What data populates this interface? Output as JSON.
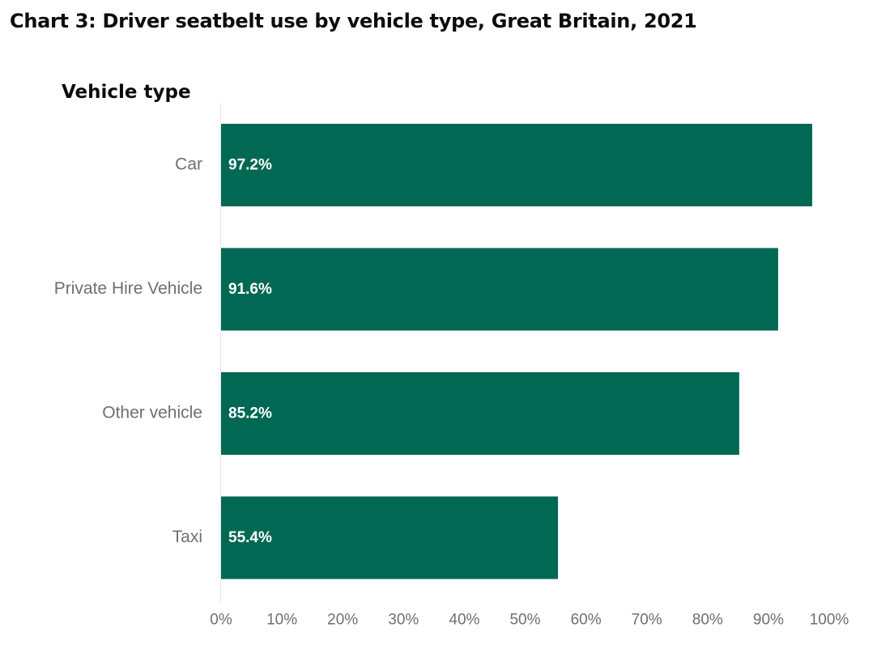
{
  "chart_data": {
    "type": "bar",
    "orientation": "horizontal",
    "title": "Chart 3: Driver seatbelt use by vehicle type, Great Britain, 2021",
    "ylabel": "Vehicle type",
    "xlabel": "",
    "categories": [
      "Car",
      "Private Hire Vehicle",
      "Other vehicle",
      "Taxi"
    ],
    "values": [
      97.2,
      91.6,
      85.2,
      55.4
    ],
    "data_labels": [
      "97.2%",
      "91.6%",
      "85.2%",
      "55.4%"
    ],
    "xlim": [
      0,
      100
    ],
    "x_ticks": [
      "0%",
      "10%",
      "20%",
      "30%",
      "40%",
      "50%",
      "60%",
      "70%",
      "80%",
      "90%",
      "100%"
    ],
    "grid": false,
    "legend": "none",
    "colors": {
      "bar": "#006853",
      "bar_label": "#ffffff",
      "category_label": "#6f6f6f",
      "tick_label": "#6f6f6f",
      "axis_line": "#e6e6e6",
      "title": "#0b0c0c"
    }
  }
}
